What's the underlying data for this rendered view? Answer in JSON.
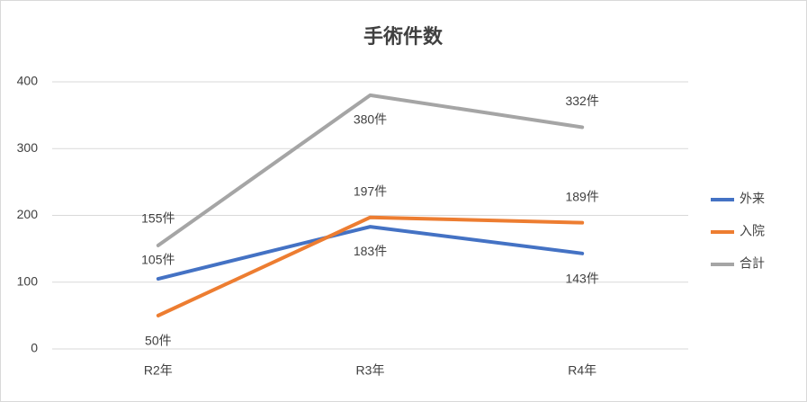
{
  "chart_data": {
    "type": "line",
    "title": "手術件数",
    "categories": [
      "R2年",
      "R3年",
      "R4年"
    ],
    "series": [
      {
        "name": "外来",
        "color": "#4472c4",
        "values": [
          105,
          183,
          143
        ],
        "value_labels": [
          "105件",
          "183件",
          "143件"
        ]
      },
      {
        "name": "入院",
        "color": "#ed7d31",
        "values": [
          50,
          197,
          189
        ],
        "value_labels": [
          "50件",
          "197件",
          "189件"
        ]
      },
      {
        "name": "合計",
        "color": "#a5a5a5",
        "values": [
          155,
          380,
          332
        ],
        "value_labels": [
          "155件",
          "380件",
          "332件"
        ]
      }
    ],
    "ylim": [
      0,
      400
    ],
    "yticks": [
      0,
      100,
      200,
      300,
      400
    ],
    "grid": true,
    "legend": "right"
  }
}
